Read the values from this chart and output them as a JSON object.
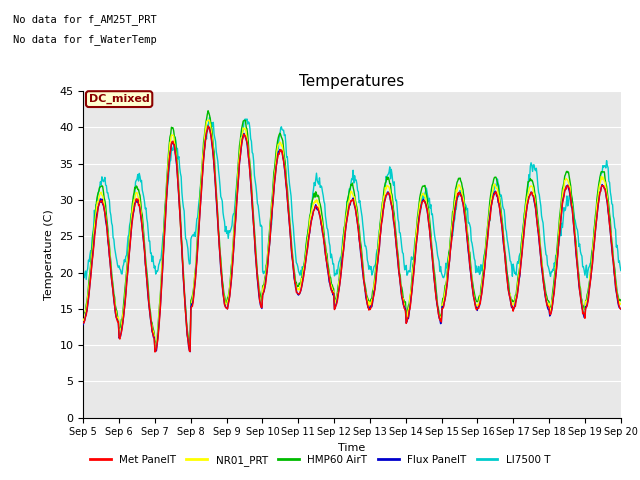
{
  "title": "Temperatures",
  "xlabel": "Time",
  "ylabel": "Temperature (C)",
  "ylim": [
    0,
    45
  ],
  "yticks": [
    0,
    5,
    10,
    15,
    20,
    25,
    30,
    35,
    40,
    45
  ],
  "annotation_text1": "No data for f_AM25T_PRT",
  "annotation_text2": "No data for f_WaterTemp",
  "dc_mixed_label": "DC_mixed",
  "legend_entries": [
    "Met PanelT",
    "NR01_PRT",
    "HMP60 AirT",
    "Flux PanelT",
    "LI7500 T"
  ],
  "legend_colors": [
    "#ff0000",
    "#ffff00",
    "#00bb00",
    "#0000cc",
    "#00cccc"
  ],
  "x_tick_labels": [
    "Sep 5",
    "Sep 6",
    "Sep 7",
    "Sep 8",
    "Sep 9",
    "Sep 10",
    "Sep 11",
    "Sep 12",
    "Sep 13",
    "Sep 14",
    "Sep 15",
    "Sep 16",
    "Sep 17",
    "Sep 18",
    "Sep 19",
    "Sep 20"
  ],
  "figsize": [
    6.4,
    4.8
  ],
  "dpi": 100
}
